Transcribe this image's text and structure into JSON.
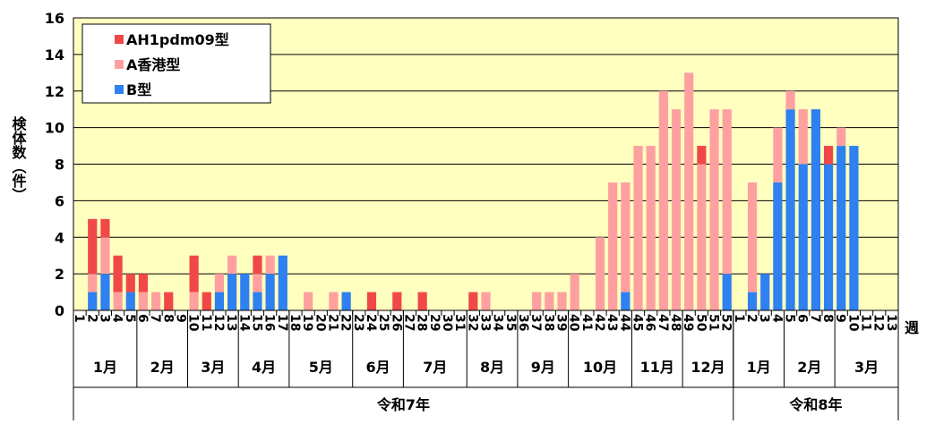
{
  "chart_data": {
    "type": "bar",
    "stacked": true,
    "y_label": "検体数（件）",
    "x_label": "週",
    "categories": [
      "1",
      "2",
      "3",
      "4",
      "5",
      "6",
      "7",
      "8",
      "9",
      "10",
      "11",
      "12",
      "13",
      "14",
      "15",
      "16",
      "17",
      "18",
      "19",
      "20",
      "21",
      "22",
      "23",
      "24",
      "25",
      "26",
      "27",
      "28",
      "29",
      "30",
      "31",
      "32",
      "33",
      "34",
      "35",
      "36",
      "37",
      "38",
      "39",
      "40",
      "41",
      "42",
      "43",
      "44",
      "45",
      "46",
      "47",
      "48",
      "49",
      "50",
      "51",
      "52",
      "1",
      "2",
      "3",
      "4",
      "5",
      "6",
      "7",
      "8",
      "9",
      "10",
      "11",
      "12",
      "13"
    ],
    "series": [
      {
        "name": "AH1pdm09型",
        "color": "#f04848",
        "values": [
          0,
          3,
          1,
          2,
          1,
          1,
          0,
          1,
          0,
          2,
          1,
          0,
          0,
          0,
          1,
          0,
          0,
          0,
          0,
          0,
          0,
          0,
          0,
          1,
          0,
          1,
          0,
          1,
          0,
          0,
          0,
          1,
          0,
          0,
          0,
          0,
          0,
          0,
          0,
          0,
          0,
          0,
          0,
          0,
          0,
          0,
          0,
          0,
          0,
          1,
          0,
          0,
          0,
          0,
          0,
          0,
          0,
          0,
          0,
          1,
          0,
          0,
          0,
          0,
          0
        ]
      },
      {
        "name": "A香港型",
        "color": "#ffa0a0",
        "values": [
          0,
          1,
          2,
          1,
          0,
          1,
          1,
          0,
          0,
          1,
          0,
          1,
          1,
          0,
          1,
          1,
          0,
          0,
          1,
          0,
          1,
          0,
          0,
          0,
          0,
          0,
          0,
          0,
          0,
          0,
          0,
          0,
          1,
          0,
          0,
          0,
          1,
          1,
          1,
          2,
          0,
          4,
          7,
          6,
          9,
          9,
          12,
          11,
          13,
          8,
          11,
          9,
          0,
          6,
          0,
          3,
          1,
          3,
          0,
          0,
          1,
          0,
          0,
          0,
          0
        ]
      },
      {
        "name": "B型",
        "color": "#2f80f0",
        "values": [
          0,
          1,
          2,
          0,
          1,
          0,
          0,
          0,
          0,
          0,
          0,
          1,
          2,
          2,
          1,
          2,
          3,
          0,
          0,
          0,
          0,
          1,
          0,
          0,
          0,
          0,
          0,
          0,
          0,
          0,
          0,
          0,
          0,
          0,
          0,
          0,
          0,
          0,
          0,
          0,
          0,
          0,
          0,
          1,
          0,
          0,
          0,
          0,
          0,
          0,
          0,
          2,
          0,
          1,
          2,
          7,
          11,
          8,
          11,
          8,
          9,
          9,
          0,
          0,
          0
        ]
      }
    ],
    "month_groups": [
      {
        "label": "1月",
        "count": 5
      },
      {
        "label": "2月",
        "count": 4
      },
      {
        "label": "3月",
        "count": 4
      },
      {
        "label": "4月",
        "count": 4
      },
      {
        "label": "5月",
        "count": 5
      },
      {
        "label": "6月",
        "count": 4
      },
      {
        "label": "7月",
        "count": 5
      },
      {
        "label": "8月",
        "count": 4
      },
      {
        "label": "9月",
        "count": 4
      },
      {
        "label": "10月",
        "count": 5
      },
      {
        "label": "11月",
        "count": 4
      },
      {
        "label": "12月",
        "count": 4
      },
      {
        "label": "1月",
        "count": 4
      },
      {
        "label": "2月",
        "count": 4
      },
      {
        "label": "3月",
        "count": 5
      }
    ],
    "year_groups": [
      {
        "label": "令和7年",
        "count": 52
      },
      {
        "label": "令和8年",
        "count": 13
      }
    ],
    "ylim": [
      0,
      16
    ],
    "yticks": [
      0,
      2,
      4,
      6,
      8,
      10,
      12,
      14,
      16
    ],
    "grid": true,
    "legend": "upper left"
  }
}
